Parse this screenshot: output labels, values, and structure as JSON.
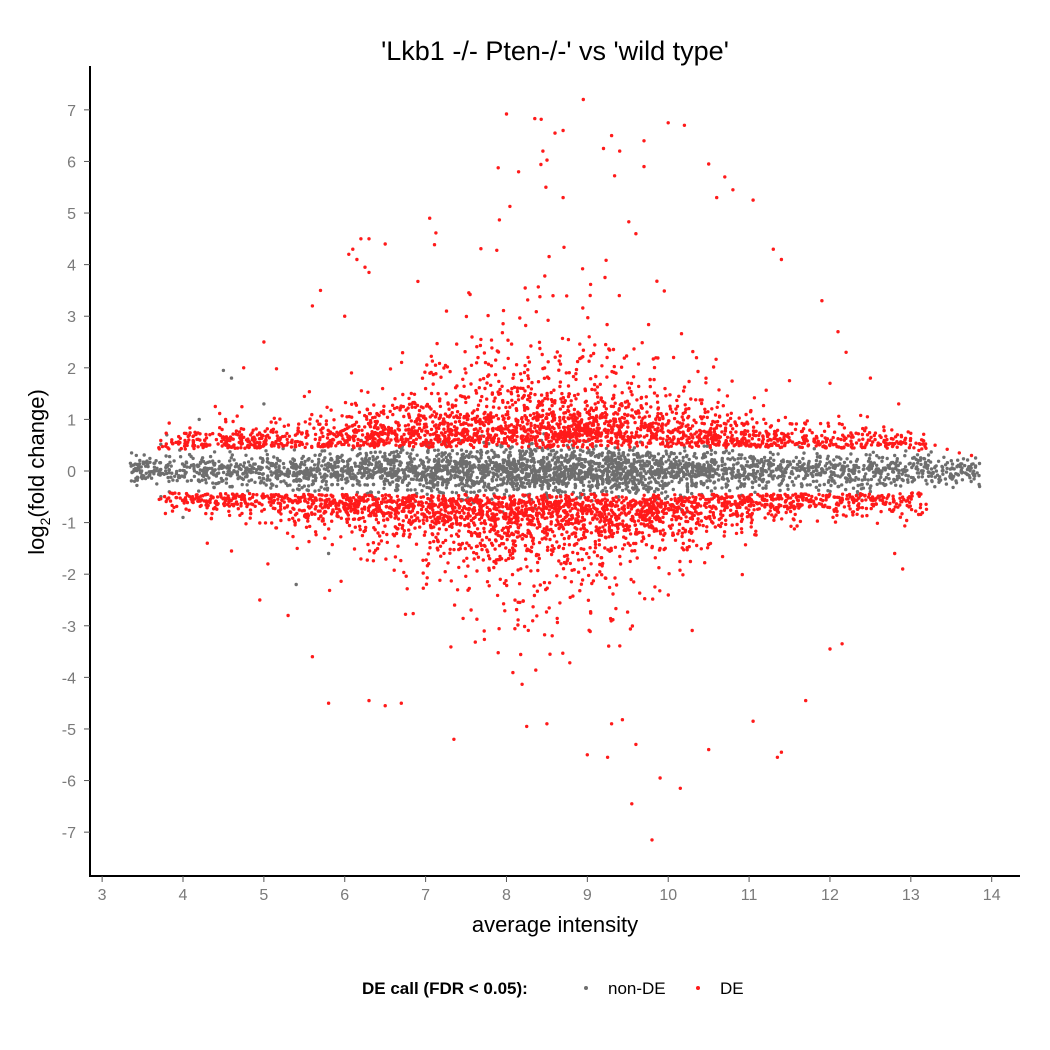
{
  "chart_data": {
    "type": "scatter",
    "title": "'Lkb1 -/- Pten-/-' vs 'wild type'",
    "xlabel": "average intensity",
    "ylabel_main": "log",
    "ylabel_sub": "2",
    "ylabel_rest": "(fold change)",
    "xlim": [
      2.85,
      14.35
    ],
    "ylim": [
      -7.85,
      7.85
    ],
    "x_ticks": [
      3,
      4,
      5,
      6,
      7,
      8,
      9,
      10,
      11,
      12,
      13,
      14
    ],
    "x_tick_labels": [
      "3",
      "4",
      "5",
      "6",
      "7",
      "8",
      "9",
      "10",
      "11",
      "12",
      "13",
      "14"
    ],
    "y_ticks": [
      7,
      6,
      5,
      4,
      3,
      2,
      1,
      0,
      -1,
      -2,
      -3,
      -4,
      -5,
      -6,
      -7
    ],
    "y_tick_labels": [
      "7",
      "6",
      "5",
      "4",
      "3",
      "2",
      "1",
      "0",
      "-1",
      "-2",
      "-3",
      "-4",
      "-5",
      "-6",
      "-7"
    ],
    "grid": false,
    "legend": {
      "title": "DE call (FDR < 0.05):",
      "position": "bottom",
      "entries": [
        {
          "name": "non-DE",
          "color": "#6e6e6e"
        },
        {
          "name": "DE",
          "color": "#ff1a1a"
        }
      ]
    },
    "series": [
      {
        "name": "non-DE",
        "color": "#6e6e6e",
        "x_range": [
          3.35,
          13.85
        ],
        "band_center": 0.0,
        "points": [
          [
            3.35,
            0.15
          ],
          [
            3.4,
            -0.2
          ],
          [
            13.85,
            -0.3
          ],
          [
            13.5,
            0.2
          ],
          [
            13.2,
            -0.25
          ],
          [
            4.5,
            1.95
          ],
          [
            4.6,
            1.8
          ],
          [
            5.8,
            -1.6
          ],
          [
            5.4,
            -2.2
          ],
          [
            3.8,
            0.7
          ],
          [
            4.0,
            -0.9
          ],
          [
            12.5,
            -0.4
          ],
          [
            12.8,
            0.3
          ],
          [
            4.2,
            1.0
          ],
          [
            5.0,
            1.3
          ]
        ]
      },
      {
        "name": "DE",
        "color": "#ff1a1a",
        "x_range": [
          3.6,
          13.75
        ],
        "points": [
          [
            8.95,
            7.2
          ],
          [
            8.0,
            6.92
          ],
          [
            8.35,
            6.83
          ],
          [
            8.7,
            6.6
          ],
          [
            8.6,
            6.55
          ],
          [
            10.0,
            6.75
          ],
          [
            10.2,
            6.7
          ],
          [
            9.3,
            6.5
          ],
          [
            9.7,
            6.4
          ],
          [
            8.45,
            6.2
          ],
          [
            9.2,
            6.25
          ],
          [
            9.4,
            6.2
          ],
          [
            10.5,
            5.95
          ],
          [
            10.7,
            5.7
          ],
          [
            11.05,
            5.25
          ],
          [
            10.8,
            5.45
          ],
          [
            10.6,
            5.3
          ],
          [
            8.15,
            5.8
          ],
          [
            7.05,
            4.9
          ],
          [
            6.2,
            4.5
          ],
          [
            6.3,
            4.5
          ],
          [
            6.5,
            4.4
          ],
          [
            6.05,
            4.2
          ],
          [
            6.1,
            4.3
          ],
          [
            6.15,
            4.1
          ],
          [
            6.25,
            3.95
          ],
          [
            6.3,
            3.85
          ],
          [
            11.4,
            4.1
          ],
          [
            11.3,
            4.3
          ],
          [
            9.6,
            4.6
          ],
          [
            9.7,
            5.9
          ],
          [
            8.7,
            5.3
          ],
          [
            5.7,
            3.5
          ],
          [
            5.6,
            3.2
          ],
          [
            6.0,
            3.0
          ],
          [
            11.9,
            3.3
          ],
          [
            12.1,
            2.7
          ],
          [
            12.2,
            2.3
          ],
          [
            12.5,
            1.8
          ],
          [
            12.85,
            1.3
          ],
          [
            12.0,
            1.7
          ],
          [
            11.5,
            1.75
          ],
          [
            5.0,
            2.5
          ],
          [
            4.75,
            2.0
          ],
          [
            4.4,
            1.25
          ],
          [
            13.1,
            0.4
          ],
          [
            13.3,
            0.5
          ],
          [
            13.45,
            0.42
          ],
          [
            13.6,
            0.35
          ],
          [
            13.75,
            0.3
          ],
          [
            9.8,
            -7.15
          ],
          [
            9.55,
            -6.45
          ],
          [
            9.9,
            -5.95
          ],
          [
            10.15,
            -6.15
          ],
          [
            9.25,
            -5.55
          ],
          [
            9.6,
            -5.3
          ],
          [
            9.3,
            -4.9
          ],
          [
            9.0,
            -5.5
          ],
          [
            10.5,
            -5.4
          ],
          [
            11.35,
            -5.55
          ],
          [
            11.4,
            -5.45
          ],
          [
            11.05,
            -4.85
          ],
          [
            11.7,
            -4.45
          ],
          [
            12.15,
            -3.35
          ],
          [
            12.0,
            -3.45
          ],
          [
            5.8,
            -4.5
          ],
          [
            6.3,
            -4.45
          ],
          [
            6.5,
            -4.55
          ],
          [
            6.7,
            -4.5
          ],
          [
            5.6,
            -3.6
          ],
          [
            7.35,
            -5.2
          ],
          [
            8.25,
            -4.95
          ],
          [
            8.5,
            -4.9
          ],
          [
            12.8,
            -1.6
          ],
          [
            12.9,
            -1.9
          ],
          [
            4.6,
            -1.55
          ],
          [
            4.3,
            -1.4
          ],
          [
            5.05,
            -1.8
          ],
          [
            4.95,
            -2.5
          ],
          [
            5.3,
            -2.8
          ]
        ]
      }
    ]
  }
}
